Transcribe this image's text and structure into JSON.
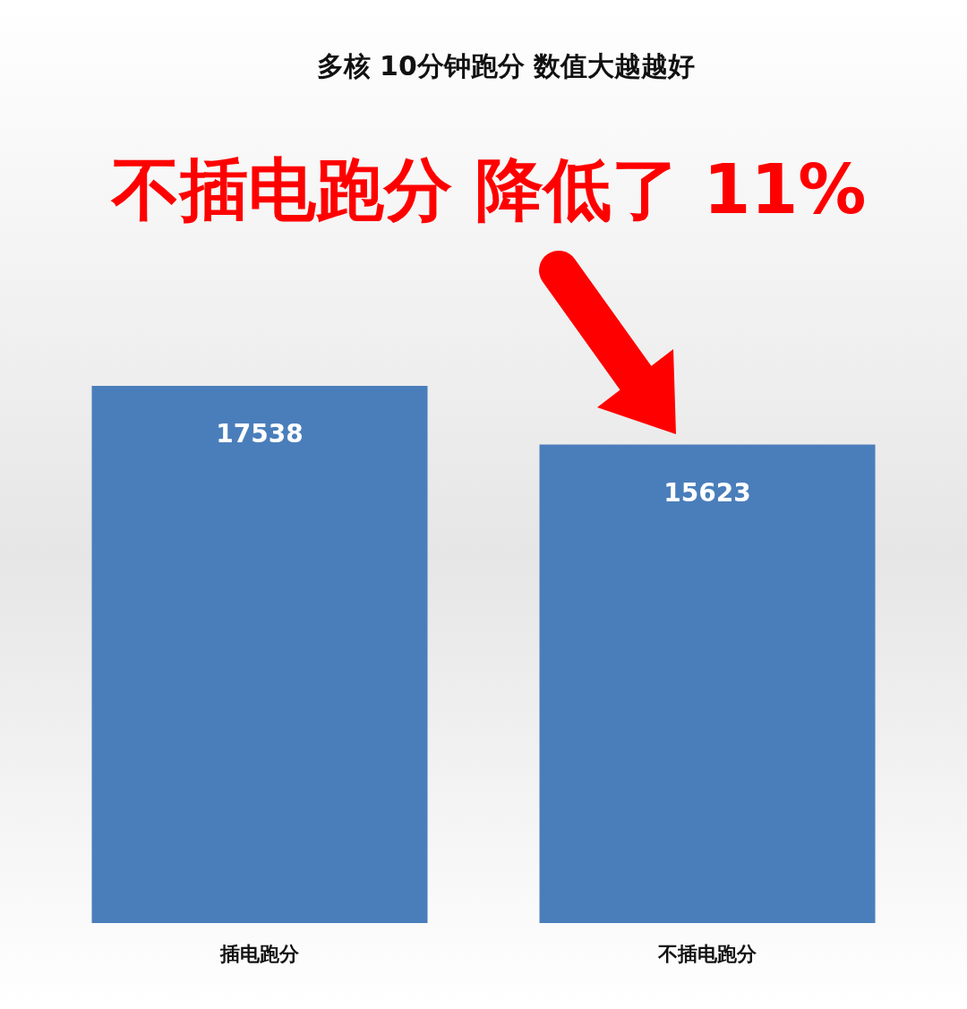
{
  "chart_data": {
    "type": "bar",
    "title": "多核 10分钟跑分 数值大越越好",
    "categories": [
      "插电跑分",
      "不插电跑分"
    ],
    "values": [
      17538,
      15623
    ],
    "color": "#4a7ebb",
    "data_labels": true,
    "annotations": [
      "不插电跑分 降低了 11%"
    ]
  }
}
